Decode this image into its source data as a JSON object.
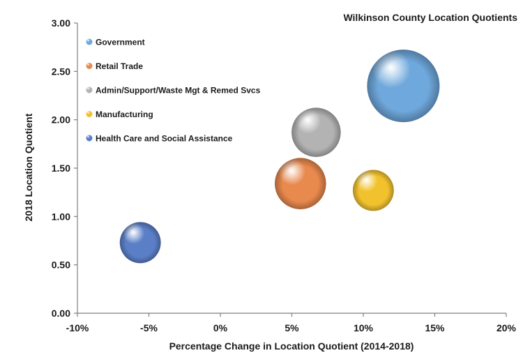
{
  "chart_data": {
    "type": "bubble",
    "title": "Wilkinson County Location Quotients",
    "xlabel": "Percentage Change in Location Quotient (2014-2018)",
    "ylabel": "2018 Location Quotient",
    "xlim": [
      -10,
      20
    ],
    "ylim": [
      0,
      3
    ],
    "x_ticks": [
      "-10%",
      "-5%",
      "0%",
      "5%",
      "10%",
      "15%",
      "20%"
    ],
    "y_ticks": [
      "0.00",
      "0.50",
      "1.00",
      "1.50",
      "2.00",
      "2.50",
      "3.00"
    ],
    "grid": false,
    "legend_position": "top-left",
    "series": [
      {
        "name": "Government",
        "x": 12.8,
        "y": 2.35,
        "size": 1.0,
        "color": "#6fa8dc"
      },
      {
        "name": "Retail Trade",
        "x": 5.6,
        "y": 1.34,
        "size": 0.5,
        "color": "#e8894e"
      },
      {
        "name": "Admin/Support/Waste Mgt & Remed Svcs",
        "x": 6.7,
        "y": 1.87,
        "size": 0.46,
        "color": "#b3b3b3"
      },
      {
        "name": "Manufacturing",
        "x": 10.7,
        "y": 1.27,
        "size": 0.32,
        "color": "#f2c22e"
      },
      {
        "name": "Health Care and Social Assistance",
        "x": -5.6,
        "y": 0.73,
        "size": 0.32,
        "color": "#5b7fc7"
      }
    ]
  }
}
